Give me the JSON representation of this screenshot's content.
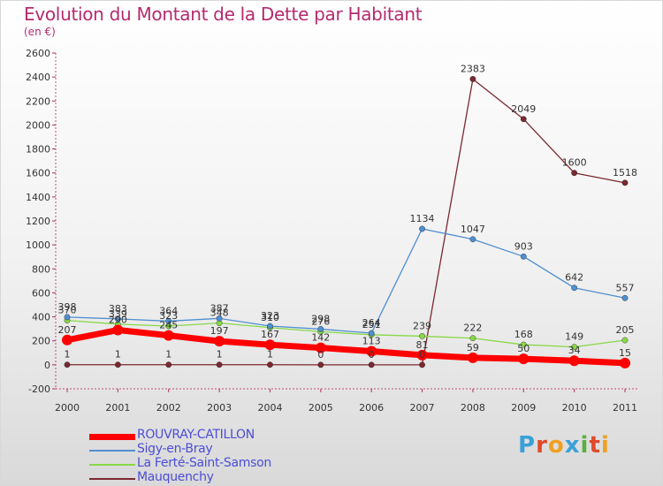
{
  "header": {
    "title": "Evolution du Montant de la Dette par Habitant",
    "subtitle": "(en €)"
  },
  "brand": {
    "letters": [
      "P",
      "r",
      "o",
      "x",
      "i",
      "t",
      "i"
    ],
    "colors": [
      "#3aa0d8",
      "#e04a2a",
      "#f0a020",
      "#3aa0d8",
      "#5ab040",
      "#e04a2a",
      "#f0a020"
    ]
  },
  "chart_data": {
    "type": "line",
    "title": "Evolution du Montant de la Dette par Habitant",
    "subtitle": "(en €)",
    "xlabel": "",
    "ylabel": "",
    "x": [
      "2000",
      "2001",
      "2002",
      "2003",
      "2004",
      "2005",
      "2006",
      "2007",
      "2008",
      "2009",
      "2010",
      "2011"
    ],
    "ylim": [
      -200,
      2600
    ],
    "yticks": [
      -200,
      0,
      200,
      400,
      600,
      800,
      1000,
      1200,
      1400,
      1600,
      1800,
      2000,
      2200,
      2400,
      2600
    ],
    "grid": false,
    "legend_position": "bottom-left",
    "series": [
      {
        "name": "ROUVRAY-CATILLON",
        "color": "#ff0000",
        "values": [
          207,
          290,
          245,
          197,
          167,
          142,
          113,
          81,
          59,
          50,
          34,
          15
        ],
        "labels": [
          "207",
          "290",
          "245",
          "197",
          "167",
          "142",
          "113",
          "81",
          "59",
          "50",
          "34",
          "15"
        ]
      },
      {
        "name": "Sigy-en-Bray",
        "color": "#4f8fd0",
        "values": [
          398,
          383,
          364,
          387,
          323,
          298,
          264,
          1134,
          1047,
          903,
          642,
          557
        ],
        "labels": [
          "398",
          "383",
          "364",
          "387",
          "323",
          "298",
          "264",
          "1134",
          "1047",
          "903",
          "642",
          "557"
        ]
      },
      {
        "name": "La Ferté-Saint-Samson",
        "color": "#88d848",
        "values": [
          370,
          339,
          323,
          348,
          310,
          276,
          251,
          239,
          222,
          168,
          149,
          205
        ],
        "labels": [
          "370",
          "339",
          "323",
          "348",
          "310",
          "276",
          "251",
          "239",
          "222",
          "168",
          "149",
          "205"
        ]
      },
      {
        "name": "Mauquenchy",
        "color": "#7a2830",
        "values": [
          1,
          1,
          1,
          1,
          1,
          0,
          0,
          0,
          2383,
          2049,
          1600,
          1518
        ],
        "labels": [
          "1",
          "1",
          "1",
          "1",
          "1",
          "0",
          "0",
          "0",
          "2383",
          "2049",
          "1600",
          "1518"
        ]
      }
    ]
  }
}
